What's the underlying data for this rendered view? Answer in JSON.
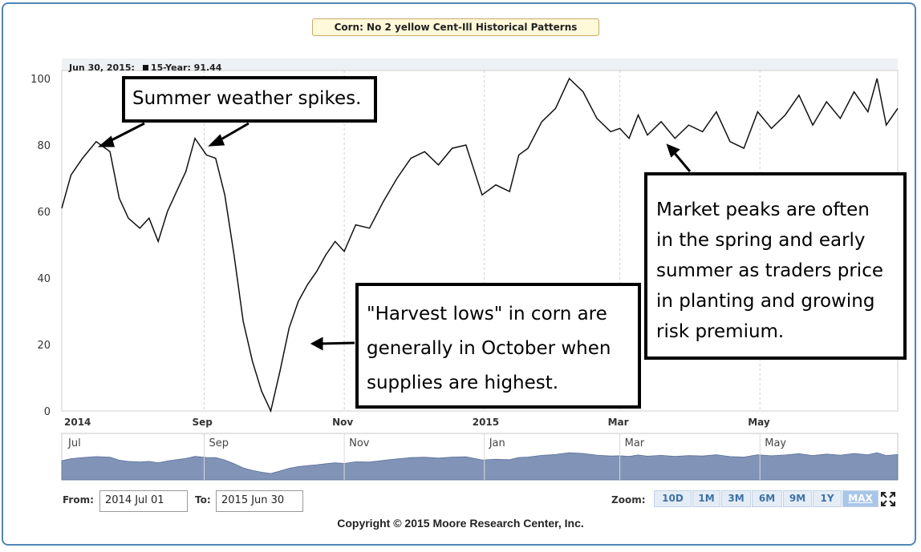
{
  "title": "Corn: No 2 yellow Cent-Ill Historical Patterns",
  "readout": {
    "date": "Jun 30, 2015:",
    "series_label": "15-Year: 91.44"
  },
  "annotations": {
    "summer": "Summer weather spikes.",
    "harvest": [
      "\"Harvest lows\" in corn are",
      "generally in October when",
      "supplies are highest."
    ],
    "peaks": [
      "Market peaks are often",
      "in the spring and early",
      "summer as traders price",
      "in planting and growing",
      "risk premium."
    ]
  },
  "controls": {
    "from_label": "From:",
    "from_value": "2014 Jul 01",
    "to_label": "To:",
    "to_value": "2015 Jun 30",
    "zoom_label": "Zoom:",
    "zoom_options": [
      "10D",
      "1M",
      "3M",
      "6M",
      "9M",
      "1Y",
      "MAX"
    ],
    "zoom_selected": "MAX"
  },
  "navigator_labels": [
    "Jul",
    "Sep",
    "Nov",
    "Jan",
    "Mar",
    "May"
  ],
  "copyright": "Copyright © 2015 Moore Research Center, Inc.",
  "colors": {
    "frame": "#4f86b8",
    "line": "#111111",
    "navigator_fill": "#8194b8",
    "grid": "#d0d0d0"
  },
  "chart_data": {
    "type": "line",
    "title": "Corn: No 2 yellow Cent-Ill Historical Patterns",
    "series": [
      {
        "name": "15-Year",
        "x": [
          "2014-07-01",
          "2014-07-05",
          "2014-07-10",
          "2014-07-16",
          "2014-07-22",
          "2014-07-26",
          "2014-07-30",
          "2014-08-04",
          "2014-08-08",
          "2014-08-12",
          "2014-08-16",
          "2014-08-20",
          "2014-08-24",
          "2014-08-28",
          "2014-09-02",
          "2014-09-06",
          "2014-09-10",
          "2014-09-14",
          "2014-09-18",
          "2014-09-22",
          "2014-09-26",
          "2014-09-30",
          "2014-10-04",
          "2014-10-08",
          "2014-10-12",
          "2014-10-16",
          "2014-10-20",
          "2014-10-24",
          "2014-10-28",
          "2014-11-01",
          "2014-11-06",
          "2014-11-12",
          "2014-11-18",
          "2014-11-24",
          "2014-11-30",
          "2014-12-06",
          "2014-12-12",
          "2014-12-18",
          "2014-12-24",
          "2014-12-31",
          "2015-01-06",
          "2015-01-12",
          "2015-01-16",
          "2015-01-20",
          "2015-01-26",
          "2015-02-01",
          "2015-02-07",
          "2015-02-13",
          "2015-02-19",
          "2015-02-25",
          "2015-03-01",
          "2015-03-05",
          "2015-03-09",
          "2015-03-13",
          "2015-03-19",
          "2015-03-25",
          "2015-03-31",
          "2015-04-06",
          "2015-04-12",
          "2015-04-18",
          "2015-04-24",
          "2015-04-30",
          "2015-05-06",
          "2015-05-12",
          "2015-05-18",
          "2015-05-24",
          "2015-05-30",
          "2015-06-05",
          "2015-06-11",
          "2015-06-17",
          "2015-06-21",
          "2015-06-25",
          "2015-06-30"
        ],
        "values": [
          61,
          71,
          76,
          81,
          78,
          64,
          58,
          55,
          58,
          51,
          60,
          66,
          72,
          82,
          77,
          76,
          65,
          47,
          27,
          15,
          6,
          0,
          12,
          25,
          33,
          38,
          42,
          47,
          51,
          48,
          56,
          55,
          63,
          70,
          76,
          78,
          74,
          79,
          80,
          65,
          68,
          66,
          77,
          79,
          87,
          91,
          100,
          96,
          88,
          84,
          85,
          82,
          89,
          83,
          87,
          82,
          86,
          84,
          90,
          81,
          79,
          90,
          85,
          89,
          95,
          86,
          93,
          88,
          96,
          90,
          100,
          86,
          91
        ]
      }
    ],
    "xlabel": "",
    "ylabel": "",
    "ylim": [
      0,
      100
    ],
    "yticks": [
      0,
      20,
      40,
      60,
      80,
      100
    ],
    "xticks": [
      {
        "date": "2014-07-01",
        "label": "2014"
      },
      {
        "date": "2014-09-01",
        "label": "Sep"
      },
      {
        "date": "2014-11-01",
        "label": "Nov"
      },
      {
        "date": "2015-01-01",
        "label": "2015"
      },
      {
        "date": "2015-03-01",
        "label": "Mar"
      },
      {
        "date": "2015-05-01",
        "label": "May"
      }
    ],
    "grid": true,
    "legend": "top-left"
  }
}
